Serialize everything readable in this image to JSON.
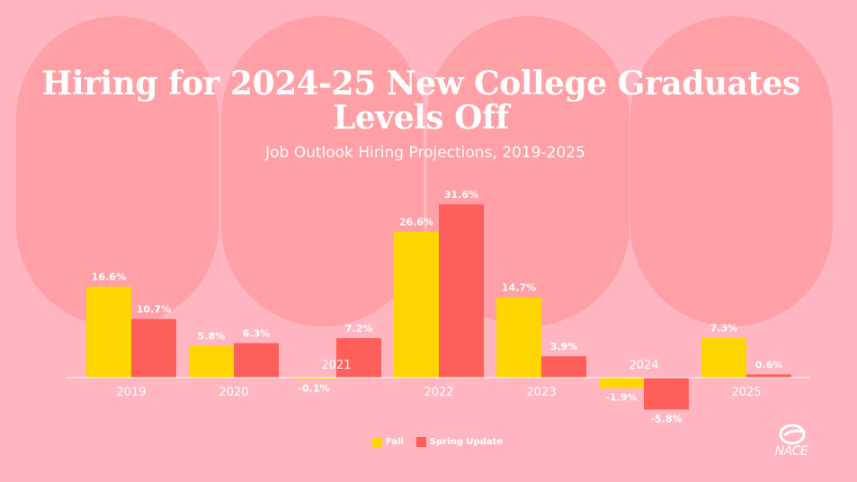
{
  "title_line1": "Hiring for 2024-25 New College Graduates",
  "title_line2": "Levels Off",
  "subtitle": "Job Outlook Hiring Projections, 2019-2025",
  "logo_text": "NACE",
  "colors": {
    "fall": "#FFD500",
    "spring": "#FF5F5A",
    "background": "#FFB6C1",
    "blob": "#FF9FA6"
  },
  "chart_data": {
    "type": "bar",
    "title": "Hiring for 2024-25 New College Graduates Levels Off",
    "subtitle": "Job Outlook Hiring Projections, 2019-2025",
    "xlabel": "",
    "ylabel": "",
    "categories": [
      "2019",
      "2020",
      "2021",
      "2022",
      "2023",
      "2024",
      "2025"
    ],
    "series": [
      {
        "name": "Fall",
        "values": [
          16.6,
          5.8,
          -0.1,
          26.6,
          14.7,
          -1.9,
          7.3
        ],
        "labels": [
          "16.6%",
          "5.8%",
          "-0.1%",
          "26.6%",
          "14.7%",
          "-1.9%",
          "7.3%"
        ]
      },
      {
        "name": "Spring Update",
        "values": [
          10.7,
          6.3,
          7.2,
          31.6,
          3.9,
          -5.8,
          0.6
        ],
        "labels": [
          "10.7%",
          "6.3%",
          "7.2%",
          "31.6%",
          "3.9%",
          "-5.8%",
          "0.6%"
        ]
      }
    ],
    "grid": false,
    "legend": "bottom-center"
  }
}
